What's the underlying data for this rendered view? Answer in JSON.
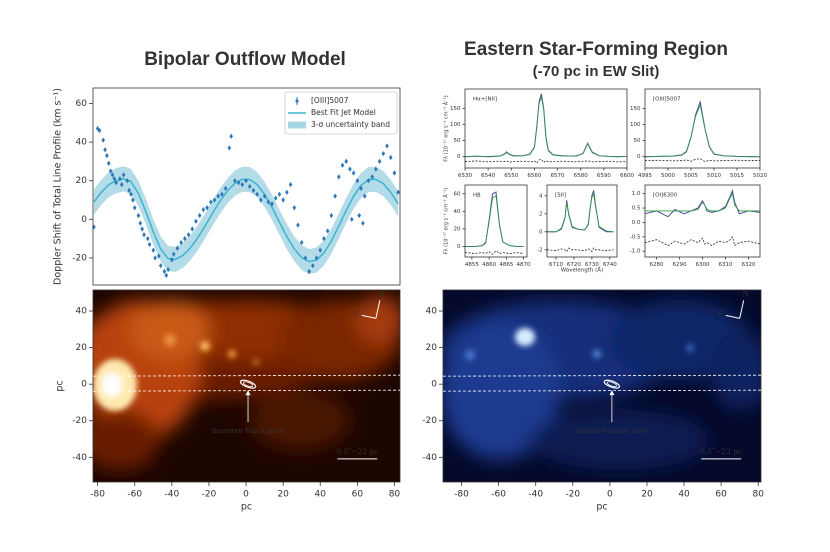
{
  "headings": {
    "left": "Bipolar Outflow Model",
    "right": "Eastern Star-Forming Region",
    "right_sub": "(-70 pc in EW Slit)"
  },
  "chart_data": [
    {
      "type": "scatter",
      "ylabel": "Doppler Shift of Total Line Profile (km s⁻¹)",
      "xlim": [
        -82.5,
        83
      ],
      "ylim": [
        -34,
        68
      ],
      "yticks": [
        -20,
        0,
        20,
        40,
        60
      ],
      "legend": "upper right",
      "series": [
        {
          "name": "[OIII]5007",
          "color": "#2e78b7",
          "style": "points",
          "x": [
            -82,
            -80,
            -79,
            -77,
            -76,
            -75,
            -74,
            -73,
            -72,
            -71,
            -70,
            -68,
            -67,
            -66,
            -64,
            -63,
            -62,
            -61,
            -60,
            -58,
            -57,
            -56,
            -55,
            -53,
            -52,
            -50,
            -49,
            -47,
            -46,
            -44,
            -43,
            -42,
            -40,
            -39,
            -37,
            -35,
            -33,
            -31,
            -29,
            -27,
            -25,
            -23,
            -21,
            -19,
            -17,
            -15,
            -13,
            -11,
            -9,
            -8,
            -6,
            -4,
            -2,
            0,
            2,
            4,
            6,
            8,
            10,
            12,
            14,
            16,
            18,
            20,
            22,
            24,
            26,
            28,
            30,
            32,
            34,
            36,
            38,
            40,
            42,
            44,
            46,
            48,
            50,
            52,
            54,
            56,
            58,
            60,
            62,
            64,
            66,
            68,
            70,
            72,
            74,
            76,
            78,
            80,
            82,
            57,
            61,
            63
          ],
          "values": [
            -4,
            47,
            46,
            41,
            36,
            33,
            29,
            25,
            23,
            21,
            19,
            21,
            18,
            23,
            20,
            15,
            13,
            10,
            6,
            2,
            -2,
            -5,
            -8,
            -10,
            -13,
            -16,
            -20,
            -19,
            -24,
            -27,
            -29,
            -26,
            -21,
            -18,
            -15,
            -12,
            -10,
            -8,
            -5,
            -1,
            2,
            5,
            6,
            9,
            10,
            12,
            13,
            16,
            37,
            43,
            20,
            19,
            18,
            20,
            17,
            15,
            13,
            10,
            12,
            9,
            8,
            11,
            13,
            10,
            14,
            18,
            6,
            -3,
            -12,
            -20,
            -27,
            -24,
            -20,
            -16,
            -10,
            -6,
            2,
            12,
            22,
            28,
            30,
            26,
            24,
            20,
            16,
            12,
            20,
            22,
            26,
            30,
            34,
            38,
            32,
            24,
            14,
            0,
            2,
            -2
          ]
        },
        {
          "name": "Best Fit Jet Model",
          "color": "#3bb4cf",
          "style": "line",
          "x": [
            -82,
            -78,
            -74,
            -70,
            -66,
            -62,
            -58,
            -54,
            -50,
            -46,
            -42,
            -38,
            -34,
            -30,
            -26,
            -22,
            -18,
            -14,
            -10,
            -6,
            -2,
            2,
            6,
            10,
            14,
            18,
            22,
            26,
            30,
            34,
            38,
            42,
            46,
            50,
            54,
            58,
            62,
            66,
            70,
            74,
            78,
            82
          ],
          "values": [
            9,
            14,
            18,
            20,
            21,
            19.5,
            13.4,
            4,
            -6.5,
            -15.4,
            -20.3,
            -20.7,
            -18.7,
            -14.8,
            -9.5,
            -3.3,
            3.3,
            9.5,
            14.8,
            18.7,
            20.7,
            20.6,
            18,
            12.9,
            6.2,
            -1.5,
            -8.9,
            -15.3,
            -19.8,
            -21.9,
            -21.1,
            -17.4,
            -11.3,
            -3.5,
            4.6,
            12,
            17.6,
            20.6,
            20.7,
            18.5,
            14,
            8
          ]
        },
        {
          "name": "3-σ uncertainty band",
          "color": "#a6d5e4",
          "style": "band",
          "halfwidth": 6.5
        }
      ]
    },
    {
      "type": "image",
      "palette": "hot",
      "xlabel": "pc",
      "ylabel": "pc",
      "xlim": [
        -82.5,
        83
      ],
      "ylim": [
        -53.5,
        51.5
      ],
      "xticks": [
        -80,
        -60,
        -40,
        -20,
        0,
        20,
        40,
        60,
        80
      ],
      "yticks": [
        -40,
        -20,
        0,
        20,
        40
      ],
      "annotations": [
        "massive black hole",
        "0.5″~22 pc",
        "N",
        "E"
      ]
    },
    {
      "type": "image",
      "palette": "blue",
      "xlabel": "pc",
      "xlim": [
        -90,
        81.5
      ],
      "ylim": [
        -53.5,
        51.5
      ],
      "xticks": [
        -80,
        -60,
        -40,
        -20,
        0,
        20,
        40,
        60,
        80
      ],
      "yticks": [
        -40,
        -20,
        0,
        20,
        40
      ],
      "annotations": [
        "massive black hole",
        "0.5″~22 pc",
        "N",
        "E"
      ]
    },
    {
      "type": "spectrum",
      "label": "Hα+[NII]",
      "ylabel": "Fλ (10⁻¹⁷ erg s⁻¹ cm⁻² Å⁻¹)",
      "xlim": [
        6530,
        6600
      ],
      "ylim": [
        -35,
        210
      ],
      "xticks": [
        6530,
        6540,
        6550,
        6560,
        6570,
        6580,
        6590,
        6600
      ],
      "yticks": [
        0,
        50,
        100,
        150
      ],
      "x": [
        6530,
        6535,
        6540,
        6545,
        6547,
        6548,
        6549,
        6551,
        6555,
        6558,
        6560,
        6561,
        6562,
        6563,
        6564,
        6565,
        6566,
        6568,
        6572,
        6578,
        6581,
        6583,
        6585,
        6588,
        6592,
        6596,
        6600
      ],
      "series": [
        {
          "color": "#4b4b9a",
          "values": [
            0,
            2,
            0,
            2,
            8,
            15,
            8,
            3,
            3,
            8,
            30,
            90,
            170,
            195,
            150,
            60,
            20,
            6,
            3,
            2,
            10,
            42,
            14,
            3,
            1,
            0,
            1
          ]
        },
        {
          "color": "#2e9b4a",
          "values": [
            1,
            1,
            1,
            2,
            7,
            13,
            7,
            2,
            3,
            7,
            28,
            95,
            165,
            185,
            145,
            55,
            18,
            5,
            2,
            3,
            9,
            40,
            12,
            3,
            1,
            1,
            1
          ]
        },
        {
          "color": "#222222",
          "dash": true,
          "values": [
            -15,
            -13,
            -16,
            -14,
            -15,
            -13,
            -17,
            -15,
            -14,
            -16,
            -13,
            -20,
            -10,
            -8,
            -18,
            -12,
            -16,
            -15,
            -14,
            -16,
            -14,
            -13,
            -16,
            -15,
            -14,
            -16,
            -15
          ]
        }
      ]
    },
    {
      "type": "spectrum",
      "label": "[OIII]5007",
      "xlim": [
        4995,
        5020
      ],
      "ylim": [
        -35,
        210
      ],
      "xticks": [
        4995,
        5000,
        5005,
        5010,
        5015,
        5020
      ],
      "yticks": [
        0,
        50,
        100,
        150
      ],
      "x": [
        4995,
        4998,
        5001,
        5003,
        5004,
        5005,
        5006,
        5007,
        5008,
        5009,
        5010,
        5012,
        5015,
        5018,
        5020
      ],
      "series": [
        {
          "color": "#4b4b9a",
          "values": [
            0,
            1,
            2,
            5,
            15,
            60,
            130,
            170,
            90,
            30,
            8,
            3,
            1,
            0,
            0
          ]
        },
        {
          "color": "#2e9b4a",
          "values": [
            1,
            1,
            2,
            6,
            17,
            62,
            125,
            160,
            88,
            32,
            9,
            3,
            1,
            1,
            0
          ]
        },
        {
          "color": "#222222",
          "dash": true,
          "values": [
            -12,
            -11,
            -13,
            -12,
            -10,
            -14,
            -8,
            -6,
            -15,
            -11,
            -13,
            -12,
            -11,
            -12,
            -12
          ]
        }
      ]
    },
    {
      "type": "spectrum",
      "label": "Hβ",
      "ylabel": "Fλ (10⁻¹⁷ erg s⁻¹ cm⁻² Å⁻¹)",
      "xlim": [
        4853,
        4871
      ],
      "ylim": [
        -12,
        70
      ],
      "xticks": [
        4855,
        4860,
        4865,
        4870
      ],
      "yticks": [
        0,
        20,
        40,
        60
      ],
      "x": [
        4853,
        4856,
        4858,
        4859,
        4860,
        4861,
        4862,
        4863,
        4864,
        4866,
        4868,
        4870
      ],
      "series": [
        {
          "color": "#4b4b9a",
          "values": [
            0,
            0,
            1,
            4,
            30,
            60,
            62,
            25,
            5,
            1,
            0,
            0
          ]
        },
        {
          "color": "#2e9b4a",
          "values": [
            0,
            0,
            1,
            5,
            28,
            55,
            58,
            24,
            5,
            1,
            0,
            0
          ]
        },
        {
          "color": "#222222",
          "dash": true,
          "values": [
            -7,
            -8,
            -7,
            -8,
            -6,
            -9,
            -5,
            -8,
            -7,
            -8,
            -7,
            -8
          ]
        }
      ]
    },
    {
      "type": "spectrum",
      "label": "[SII]",
      "xlabel": "Wavelength (Å)",
      "xlim": [
        6705,
        6744
      ],
      "ylim": [
        -2.8,
        5.2
      ],
      "xticks": [
        6710,
        6720,
        6730,
        6740
      ],
      "yticks": [
        -2,
        0,
        2,
        4
      ],
      "x": [
        6705,
        6710,
        6713,
        6715,
        6716,
        6717,
        6719,
        6722,
        6726,
        6728,
        6729,
        6730,
        6731,
        6732,
        6734,
        6738,
        6742
      ],
      "series": [
        {
          "color": "#4b4b9a",
          "values": [
            0,
            0,
            0.3,
            1.5,
            3.5,
            2,
            0.5,
            0.3,
            0.2,
            0.8,
            2.5,
            4,
            4.6,
            3,
            0.5,
            0,
            0
          ]
        },
        {
          "color": "#2e9b4a",
          "values": [
            0,
            0,
            0.4,
            1.6,
            3.2,
            2.1,
            0.6,
            0.3,
            0.2,
            0.9,
            2.6,
            3.8,
            4.2,
            2.8,
            0.6,
            0.1,
            0
          ]
        },
        {
          "color": "#222222",
          "dash": true,
          "values": [
            -2,
            -2.1,
            -1.9,
            -2,
            -2.2,
            -1.8,
            -2,
            -2,
            -2.1,
            -1.9,
            -2,
            -2.2,
            -1.8,
            -2,
            -2,
            -2.1,
            -2
          ]
        }
      ]
    },
    {
      "type": "spectrum",
      "label": "[OI]6300",
      "xlim": [
        6275,
        6325
      ],
      "ylim": [
        -1.2,
        1.3
      ],
      "xticks": [
        6280,
        6290,
        6300,
        6310,
        6320
      ],
      "yticks": [
        {
          "value": -1,
          "label": "-1.0"
        },
        -0.5,
        {
          "value": 0,
          "label": "0.0"
        },
        0.5,
        {
          "value": 1,
          "label": "1.0"
        }
      ],
      "x": [
        6275,
        6280,
        6285,
        6288,
        6292,
        6295,
        6298,
        6300,
        6301,
        6302,
        6304,
        6307,
        6310,
        6312,
        6313,
        6314,
        6316,
        6320,
        6325
      ],
      "series": [
        {
          "color": "#4b4b9a",
          "values": [
            0.3,
            0.4,
            0.2,
            0.45,
            0.3,
            0.4,
            0.5,
            0.75,
            0.6,
            0.4,
            0.35,
            0.4,
            0.55,
            0.9,
            1.1,
            0.7,
            0.3,
            0.4,
            0.35
          ]
        },
        {
          "color": "#2e9b4a",
          "values": [
            0.4,
            0.4,
            0.4,
            0.4,
            0.4,
            0.4,
            0.45,
            0.7,
            0.6,
            0.45,
            0.4,
            0.4,
            0.5,
            0.85,
            1,
            0.6,
            0.4,
            0.4,
            0.4
          ]
        },
        {
          "color": "#222222",
          "dash": true,
          "values": [
            -0.7,
            -0.6,
            -0.8,
            -0.65,
            -0.75,
            -0.6,
            -0.7,
            -0.55,
            -0.75,
            -0.7,
            -0.8,
            -0.65,
            -0.7,
            -0.6,
            -0.5,
            -0.8,
            -0.7,
            -0.65,
            -0.75
          ]
        }
      ]
    }
  ]
}
